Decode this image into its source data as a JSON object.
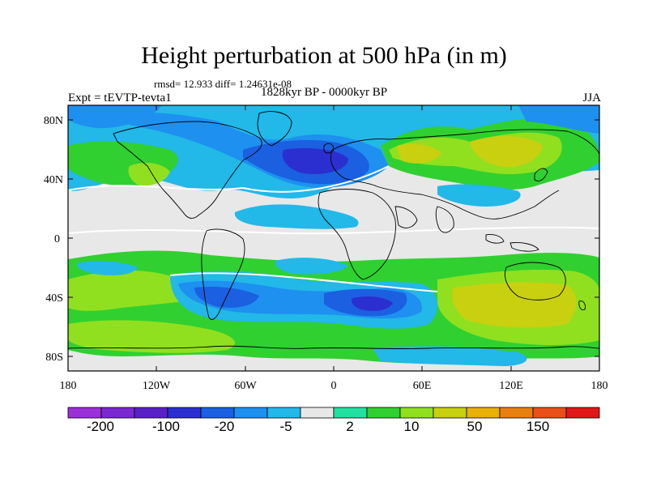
{
  "title": "Height perturbation at 500 hPa (in m)",
  "stats_text": "rmsd= 12.933 diff= 1.24631e-08",
  "experiment_text": "Expt = tEVTP-tevta1",
  "period_text": "1828kyr BP - 0000kyr BP",
  "season_text": "JJA",
  "map": {
    "projection": "cylindrical equidistant",
    "lat_ticks": [
      "80N",
      "40N",
      "0",
      "40S",
      "80S"
    ],
    "lon_ticks": [
      "180",
      "120W",
      "60W",
      "0",
      "60E",
      "120E",
      "180"
    ]
  },
  "colorbar": {
    "colors": [
      "#9b30d8",
      "#7a28d0",
      "#5a20c8",
      "#2c2fd0",
      "#1a60e0",
      "#1e90f0",
      "#22b8e8",
      "#e8e8e8",
      "#22e0a0",
      "#30d030",
      "#90e020",
      "#c8d010",
      "#e8b008",
      "#e88010",
      "#e85018",
      "#e01818"
    ],
    "labels": [
      "-200",
      "-100",
      "-20",
      "-5",
      "2",
      "10",
      "50",
      "150"
    ]
  }
}
